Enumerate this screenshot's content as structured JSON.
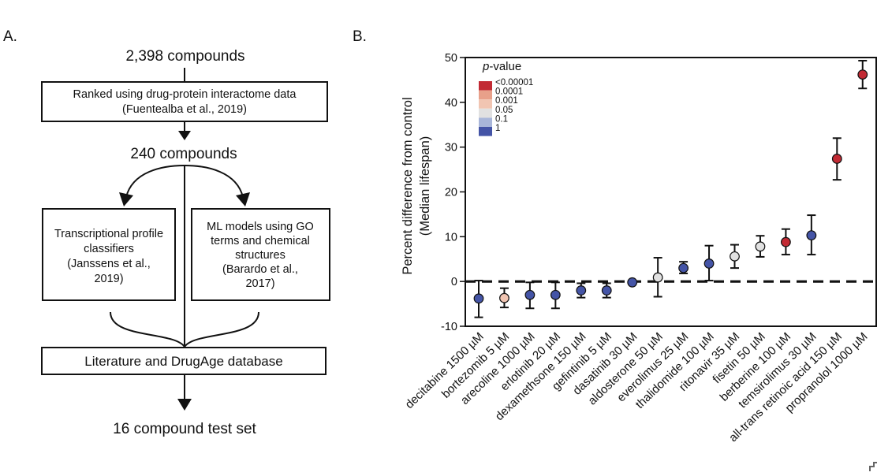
{
  "panel_a": {
    "label": "A.",
    "top_count": "2,398 compounds",
    "box1": [
      "Ranked using drug-protein interactome data",
      "(Fuentealba et al., 2019)"
    ],
    "mid_count": "240 compounds",
    "left_box": [
      "Transcriptional profile",
      "classifiers",
      "(Janssens et al.,",
      "2019)"
    ],
    "right_box": [
      "ML models using GO",
      "terms and chemical",
      "structures",
      "(Barardo et al.,",
      "2017)"
    ],
    "bottom_box": "Literature and DrugAge database",
    "final": "16 compound test set"
  },
  "panel_b": {
    "label": "B.",
    "legend_title_italic": "p",
    "legend_title_rest": "-value",
    "legend": [
      {
        "label": "<0.00001",
        "color": "#c22a34"
      },
      {
        "label": "0.0001",
        "color": "#e8a08a"
      },
      {
        "label": "0.001",
        "color": "#f1c5b2"
      },
      {
        "label": "0.05",
        "color": "#e1e1e1"
      },
      {
        "label": "0.1",
        "color": "#a9b6d9"
      },
      {
        "label": "1",
        "color": "#4454a6"
      }
    ]
  },
  "chart_data": {
    "type": "scatter",
    "ylabel_line1": "Percent difference from control",
    "ylabel_line2": "(Median lifespan)",
    "ylim": [
      -10,
      50
    ],
    "yticks": [
      -10,
      0,
      10,
      20,
      30,
      40,
      50
    ],
    "reference_line": 0,
    "categories": [
      "decitabine 1500 µM",
      "bortezomib 5 µM",
      "arecoline 1000 µM",
      "erlotinib 20 µM",
      "dexamethsone 150 µM",
      "gefintinib 5 µM",
      "dasatinib 30 µM",
      "aldosterone 50 µM",
      "everolimus 25 µM",
      "thalidomide 100 µM",
      "ritonavir 35 µM",
      "fisetin 50 µM",
      "berberine 100 µM",
      "temsirolimus 30 µM",
      "all-trans retinoic acid 150 µM",
      "propranolol 1000 µM"
    ],
    "values": [
      -3.8,
      -3.7,
      -3.0,
      -3.0,
      -2.0,
      -2.0,
      -0.2,
      0.9,
      3.0,
      4.0,
      5.6,
      7.8,
      8.8,
      10.3,
      27.4,
      46.2
    ],
    "err_low": [
      -8.0,
      -5.8,
      -6.0,
      -6.0,
      -3.6,
      -3.6,
      -0.2,
      -3.4,
      1.8,
      0.2,
      3.0,
      5.5,
      6.0,
      6.0,
      22.7,
      43.1
    ],
    "err_high": [
      0.2,
      -1.5,
      -0.2,
      -0.2,
      -0.4,
      -0.4,
      -0.2,
      5.3,
      4.4,
      8.0,
      8.2,
      10.2,
      11.7,
      14.8,
      32.0,
      49.3
    ],
    "colors": [
      "#4454a6",
      "#f1c5b2",
      "#4454a6",
      "#4454a6",
      "#4454a6",
      "#4454a6",
      "#4454a6",
      "#e1e1e1",
      "#4454a6",
      "#4454a6",
      "#e1e1e1",
      "#e1e1e1",
      "#c22a34",
      "#4454a6",
      "#c22a34",
      "#c22a34"
    ]
  }
}
